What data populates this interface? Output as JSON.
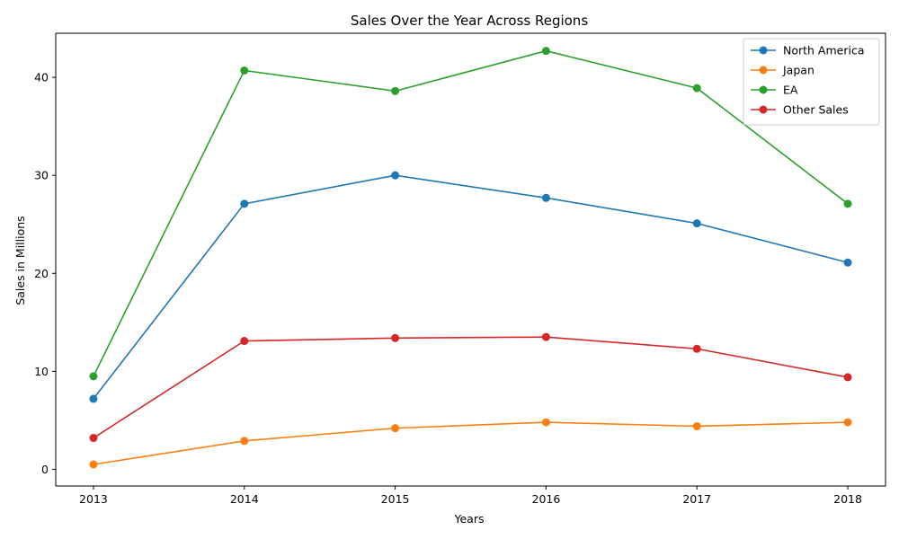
{
  "chart_data": {
    "type": "line",
    "title": "Sales Over the Year Across Regions",
    "xlabel": "Years",
    "ylabel": "Sales in Millions",
    "x": [
      2013,
      2014,
      2015,
      2016,
      2017,
      2018
    ],
    "x_tick_labels": [
      "2013",
      "2014",
      "2015",
      "2016",
      "2017",
      "2018"
    ],
    "y_ticks": [
      0,
      10,
      20,
      30,
      40
    ],
    "y_tick_labels": [
      "0",
      "10",
      "20",
      "30",
      "40"
    ],
    "xlim": [
      2012.75,
      2018.25
    ],
    "ylim": [
      -1.7,
      44.5
    ],
    "grid": false,
    "legend_position": "top-right",
    "series": [
      {
        "name": "North America",
        "color": "#1f77b4",
        "values": [
          7.2,
          27.1,
          30.0,
          27.7,
          25.1,
          21.1
        ]
      },
      {
        "name": "Japan",
        "color": "#ff7f0e",
        "values": [
          0.5,
          2.9,
          4.2,
          4.8,
          4.4,
          4.8
        ]
      },
      {
        "name": "EA",
        "color": "#2ca02c",
        "values": [
          9.5,
          40.7,
          38.6,
          42.7,
          38.9,
          27.1
        ]
      },
      {
        "name": "Other Sales",
        "color": "#d62728",
        "values": [
          3.2,
          13.1,
          13.4,
          13.5,
          12.3,
          9.4
        ]
      }
    ]
  }
}
